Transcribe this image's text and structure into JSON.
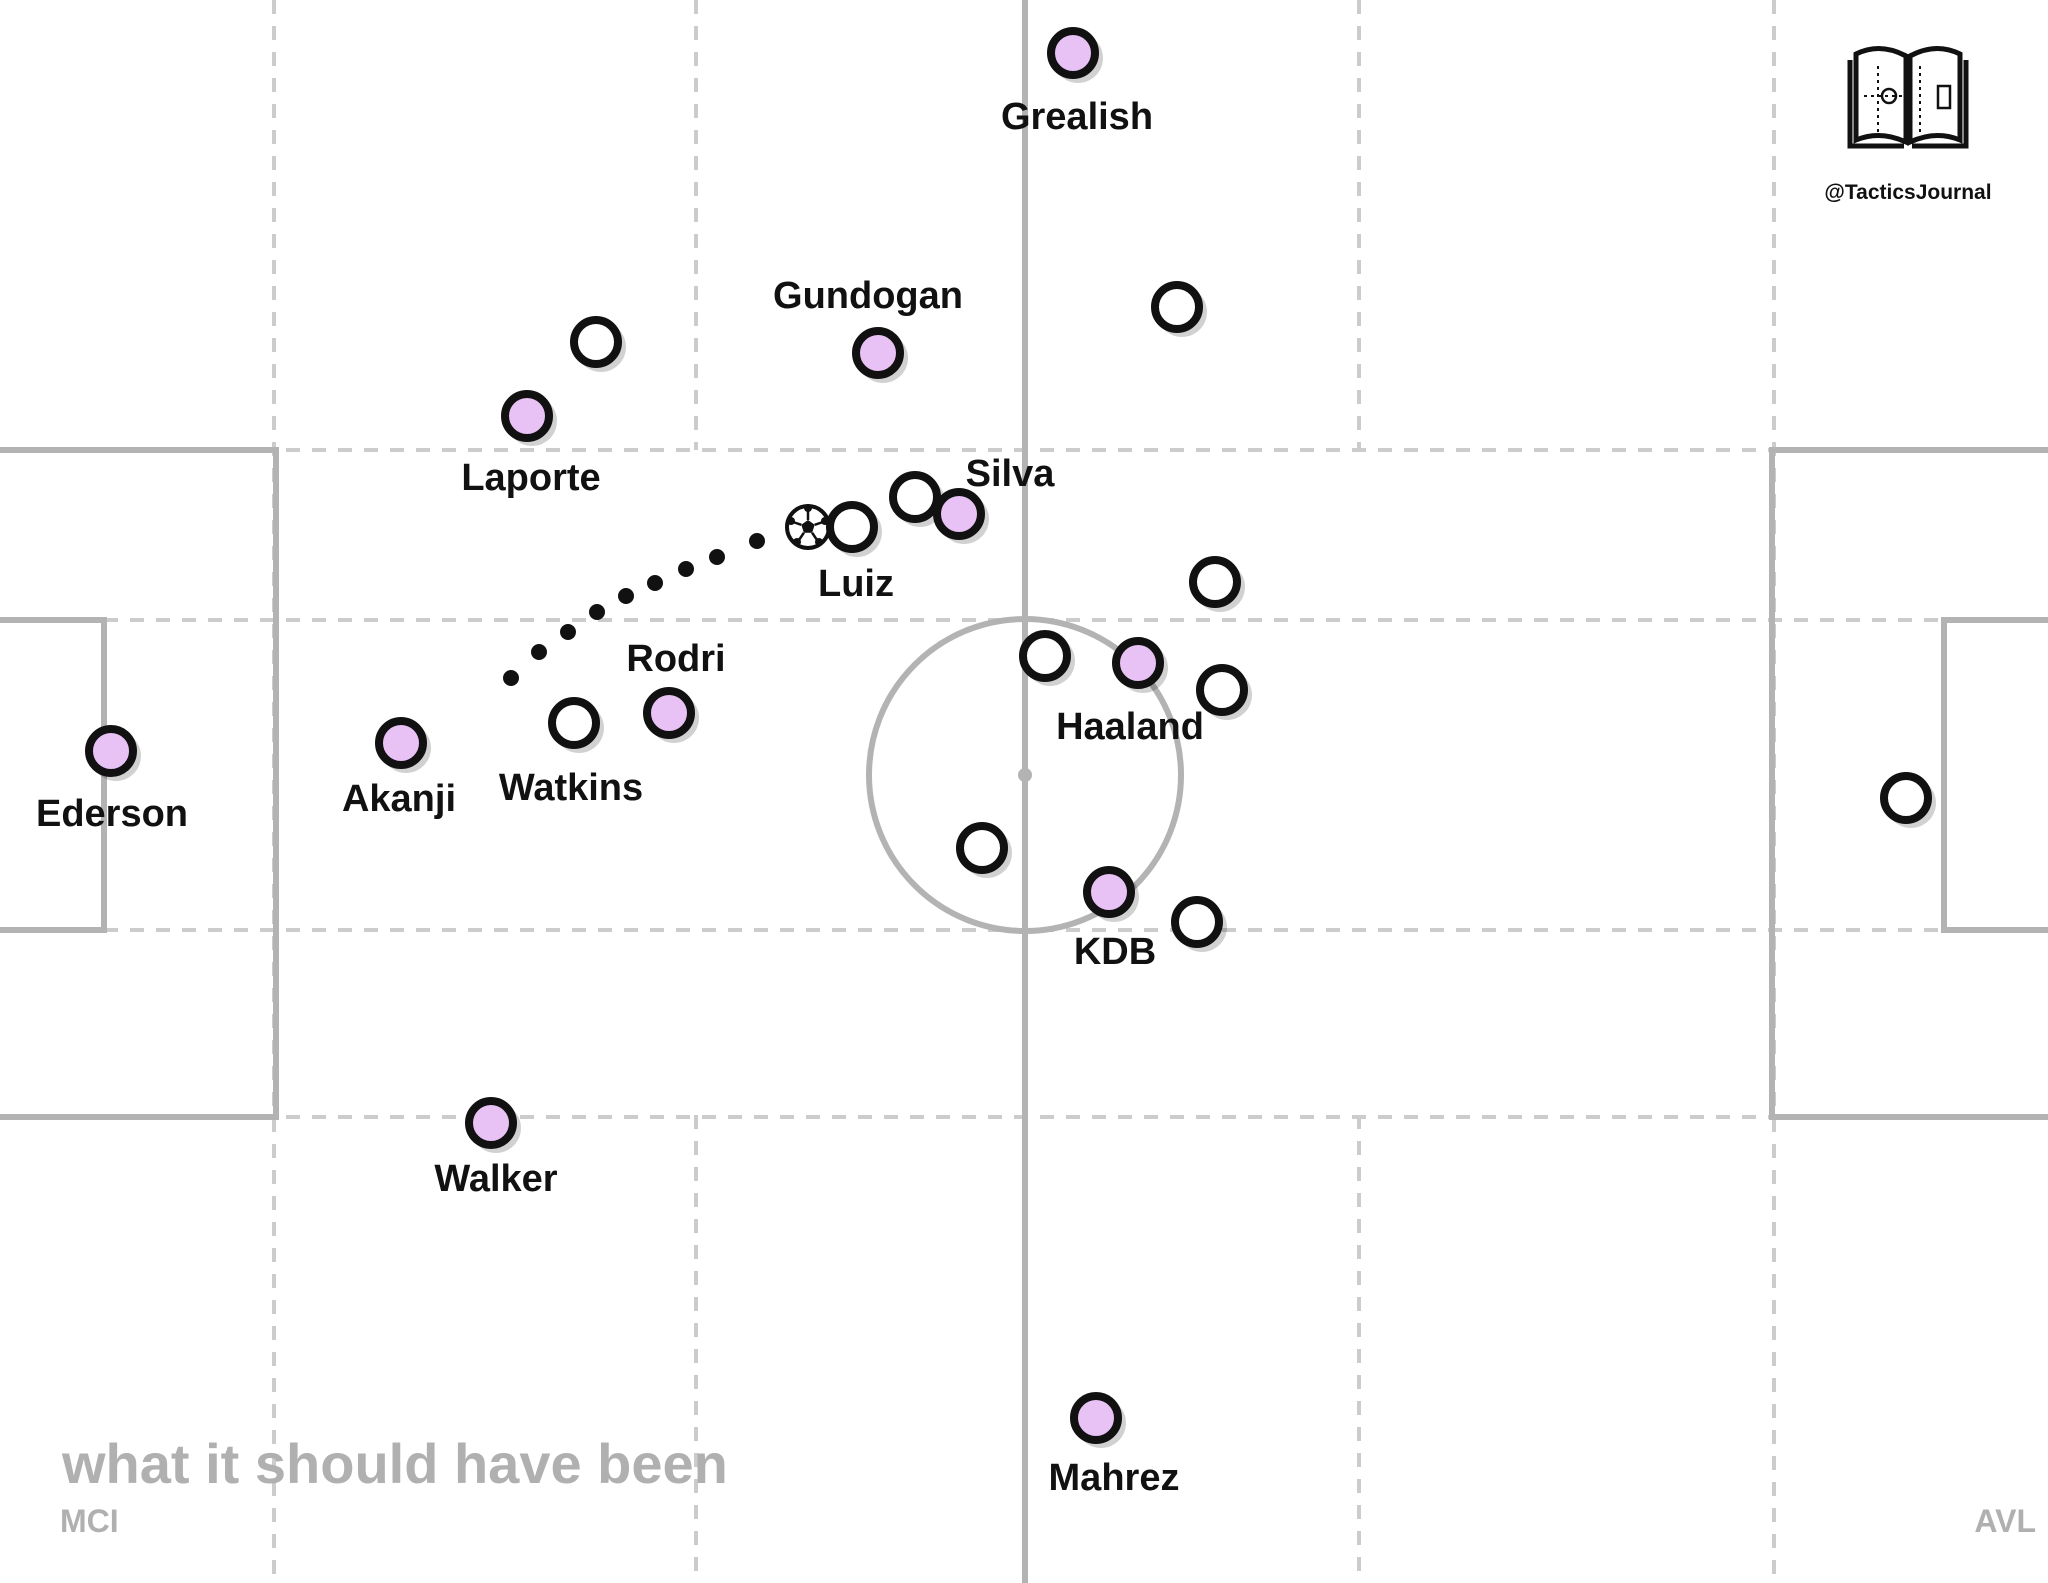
{
  "caption": "what it should have been",
  "teams": {
    "left": "MCI",
    "right": "AVL"
  },
  "watermark": {
    "handle": "@TacticsJournal",
    "logo": "open-book-pitch-logo"
  },
  "colors": {
    "team_fill": "#e8c1f5",
    "opponent_fill": "#ffffff",
    "marker_stroke": "#111111",
    "pitch_line": "#b3b3b3",
    "zone_line": "#cccccc",
    "caption": "#b0b0b0",
    "pass_dots": "#111111"
  },
  "players": [
    {
      "name": "Grealish",
      "team": "MCI"
    },
    {
      "name": "Gundogan",
      "team": "MCI"
    },
    {
      "name": "Laporte",
      "team": "MCI"
    },
    {
      "name": "Silva",
      "team": "MCI"
    },
    {
      "name": "Rodri",
      "team": "MCI"
    },
    {
      "name": "Ederson",
      "team": "MCI"
    },
    {
      "name": "Akanji",
      "team": "MCI"
    },
    {
      "name": "Haaland",
      "team": "MCI"
    },
    {
      "name": "KDB",
      "team": "MCI"
    },
    {
      "name": "Walker",
      "team": "MCI"
    },
    {
      "name": "Mahrez",
      "team": "MCI"
    }
  ],
  "opponents": [
    {
      "name": "Luiz",
      "team": "AVL"
    },
    {
      "name": "Watkins",
      "team": "AVL"
    },
    {
      "name": "",
      "team": "AVL"
    },
    {
      "name": "",
      "team": "AVL"
    },
    {
      "name": "",
      "team": "AVL"
    },
    {
      "name": "",
      "team": "AVL"
    },
    {
      "name": "",
      "team": "AVL"
    },
    {
      "name": "",
      "team": "AVL"
    },
    {
      "name": "",
      "team": "AVL"
    },
    {
      "name": "",
      "team": "AVL"
    },
    {
      "name": "",
      "team": "AVL"
    }
  ],
  "ball": {
    "icon": "football-icon"
  },
  "pass_path": {
    "style": "dotted",
    "from": "ball",
    "direction": "towards own goal"
  }
}
